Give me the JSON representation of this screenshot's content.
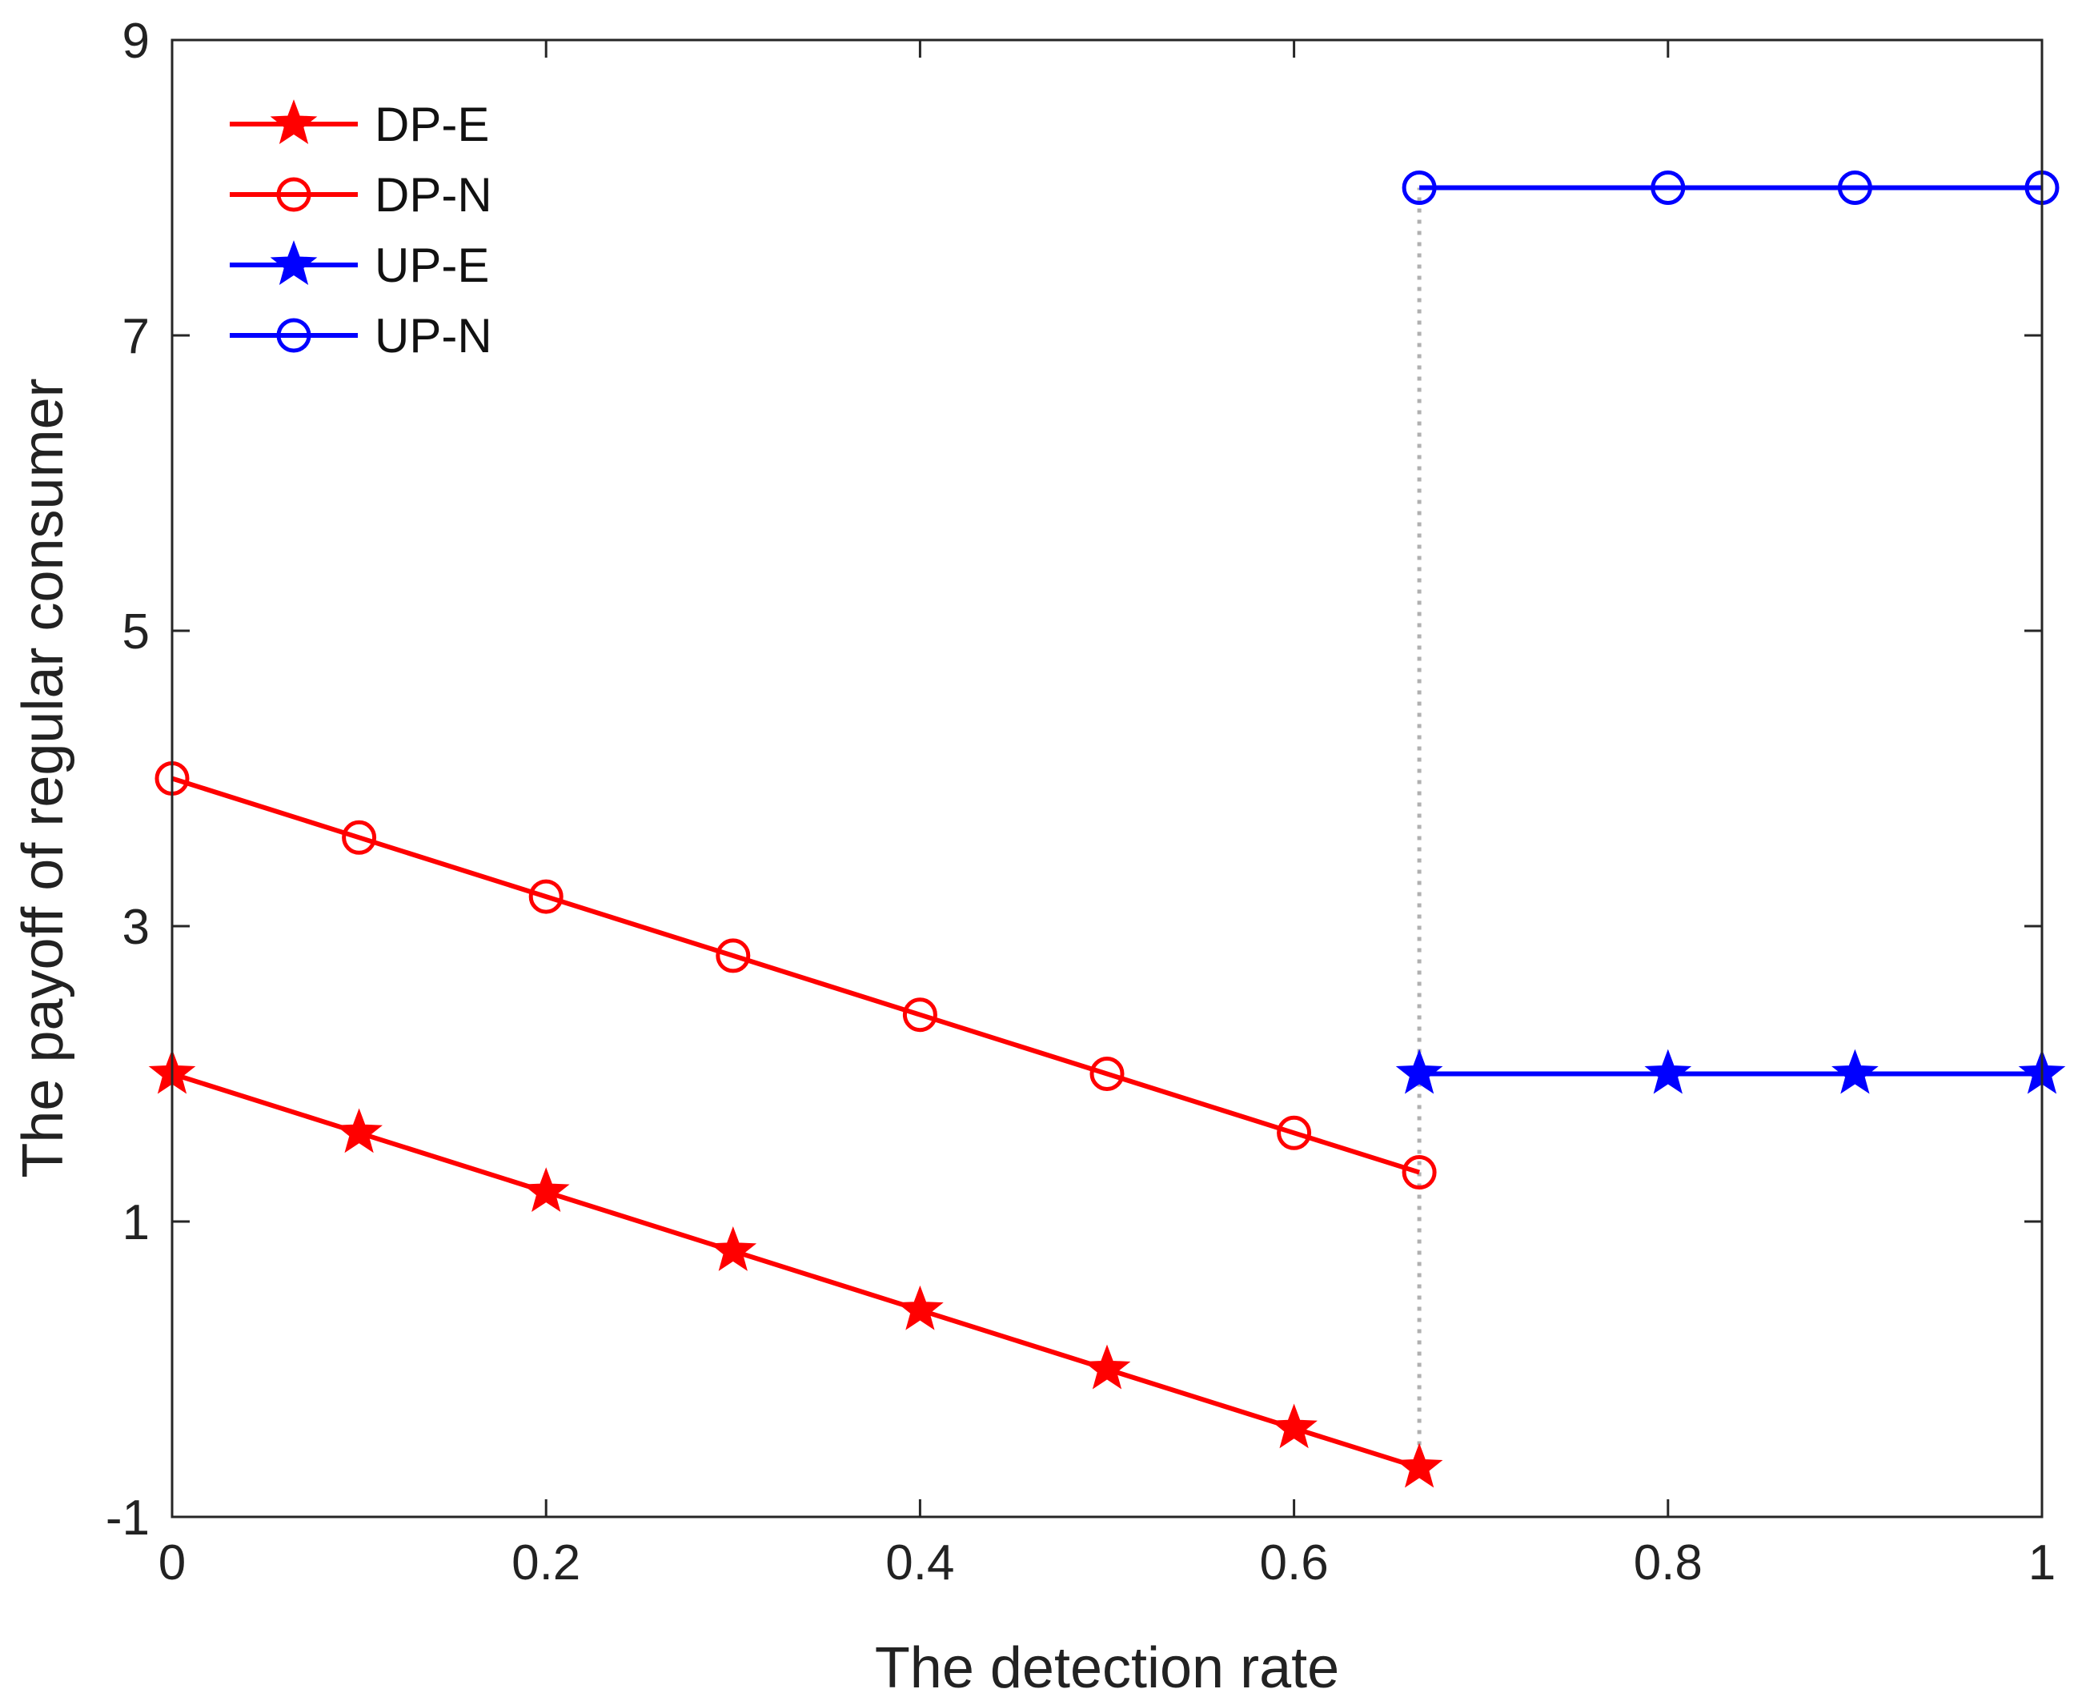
{
  "chart_data": {
    "type": "line",
    "xlabel": "The detection rate",
    "ylabel": "The payoff of regular consumer",
    "xlim": [
      0,
      1
    ],
    "ylim": [
      -1,
      9
    ],
    "xticks": [
      0,
      0.2,
      0.4,
      0.6,
      0.8,
      1
    ],
    "xtick_labels": [
      "0",
      "0.2",
      "0.4",
      "0.6",
      "0.8",
      "1"
    ],
    "yticks": [
      -1,
      1,
      3,
      5,
      7,
      9
    ],
    "ytick_labels": [
      "-1",
      "1",
      "3",
      "5",
      "7",
      "9"
    ],
    "grid": false,
    "legend_position": "top-left",
    "reference_line": {
      "x": 0.667,
      "y_from": -0.667,
      "y_to": 8,
      "color": "#b0b0b0",
      "style": "dotted"
    },
    "series": [
      {
        "name": "DP-E",
        "color": "#ff0000",
        "marker": "star",
        "x": [
          0,
          0.1,
          0.2,
          0.3,
          0.4,
          0.5,
          0.6,
          0.667
        ],
        "y": [
          2,
          1.6,
          1.2,
          0.8,
          0.4,
          0,
          -0.4,
          -0.667
        ]
      },
      {
        "name": "DP-N",
        "color": "#ff0000",
        "marker": "circle",
        "x": [
          0,
          0.1,
          0.2,
          0.3,
          0.4,
          0.5,
          0.6,
          0.667
        ],
        "y": [
          4,
          3.6,
          3.2,
          2.8,
          2.4,
          2,
          1.6,
          1.333
        ]
      },
      {
        "name": "UP-E",
        "color": "#0000ff",
        "marker": "star",
        "x": [
          0.667,
          0.8,
          0.9,
          1
        ],
        "y": [
          2,
          2,
          2,
          2
        ]
      },
      {
        "name": "UP-N",
        "color": "#0000ff",
        "marker": "circle",
        "x": [
          0.667,
          0.8,
          0.9,
          1
        ],
        "y": [
          8,
          8,
          8,
          8
        ]
      }
    ]
  }
}
